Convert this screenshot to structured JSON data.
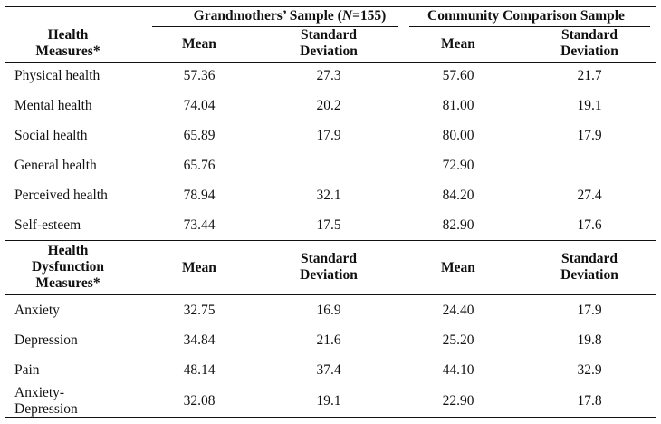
{
  "header": {
    "group_grandmothers_pre": "Grandmothers’ Sample (",
    "group_grandmothers_n": "N",
    "group_grandmothers_post": "=155)",
    "group_community": "Community Comparison Sample"
  },
  "section1": {
    "title_line1": "Health",
    "title_line2": "Measures*",
    "mean_label": "Mean",
    "sd_label_line1": "Standard",
    "sd_label_line2": "Deviation",
    "rows": [
      {
        "label": "Physical health",
        "gm_mean": "57.36",
        "gm_sd": "27.3",
        "cc_mean": "57.60",
        "cc_sd": "21.7"
      },
      {
        "label": "Mental health",
        "gm_mean": "74.04",
        "gm_sd": "20.2",
        "cc_mean": "81.00",
        "cc_sd": "19.1"
      },
      {
        "label": "Social health",
        "gm_mean": "65.89",
        "gm_sd": "17.9",
        "cc_mean": "80.00",
        "cc_sd": "17.9"
      },
      {
        "label": "General health",
        "gm_mean": "65.76",
        "gm_sd": "",
        "cc_mean": "72.90",
        "cc_sd": ""
      },
      {
        "label": "Perceived health",
        "gm_mean": "78.94",
        "gm_sd": "32.1",
        "cc_mean": "84.20",
        "cc_sd": "27.4"
      },
      {
        "label": "Self-esteem",
        "gm_mean": "73.44",
        "gm_sd": "17.5",
        "cc_mean": "82.90",
        "cc_sd": "17.6"
      }
    ]
  },
  "section2": {
    "title_line1": "Health",
    "title_line2": "Dysfunction",
    "title_line3": "Measures*",
    "mean_label": "Mean",
    "sd_label_line1": "Standard",
    "sd_label_line2": "Deviation",
    "rows": [
      {
        "label": "Anxiety",
        "gm_mean": "32.75",
        "gm_sd": "16.9",
        "cc_mean": "24.40",
        "cc_sd": "17.9"
      },
      {
        "label": "Depression",
        "gm_mean": "34.84",
        "gm_sd": "21.6",
        "cc_mean": "25.20",
        "cc_sd": "19.8"
      },
      {
        "label": "Pain",
        "gm_mean": "48.14",
        "gm_sd": "37.4",
        "cc_mean": "44.10",
        "cc_sd": "32.9"
      },
      {
        "label_line1": "Anxiety-",
        "label_line2": "Depression",
        "gm_mean": "32.08",
        "gm_sd": "19.1",
        "cc_mean": "22.90",
        "cc_sd": "17.8"
      }
    ]
  }
}
